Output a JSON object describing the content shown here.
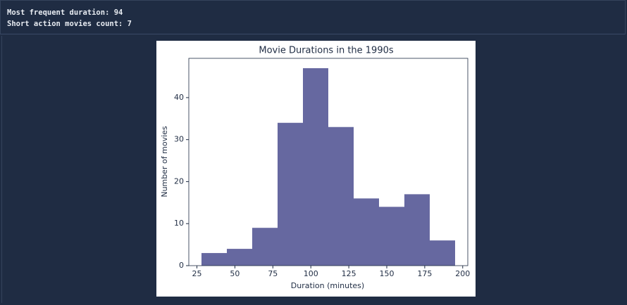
{
  "output": [
    "Most frequent duration: 94",
    "Short action movies count: 7"
  ],
  "chart_data": {
    "type": "histogram",
    "title": "Movie Durations in the 1990s",
    "x_label": "Duration (minutes)",
    "y_label": "Number of movies",
    "bins": [
      28,
      44.7,
      61.4,
      78.1,
      94.8,
      111.5,
      128.2,
      144.9,
      161.6,
      178.3,
      195
    ],
    "values": [
      3,
      4,
      9,
      34,
      47,
      33,
      16,
      14,
      17,
      6
    ],
    "color": "#6668a0",
    "xlim": [
      19.65,
      203.35
    ],
    "xticks": [
      25,
      50,
      75,
      100,
      125,
      150,
      175,
      200
    ],
    "ylim": [
      0,
      49.35
    ],
    "yticks": [
      0,
      10,
      20,
      30,
      40
    ]
  }
}
